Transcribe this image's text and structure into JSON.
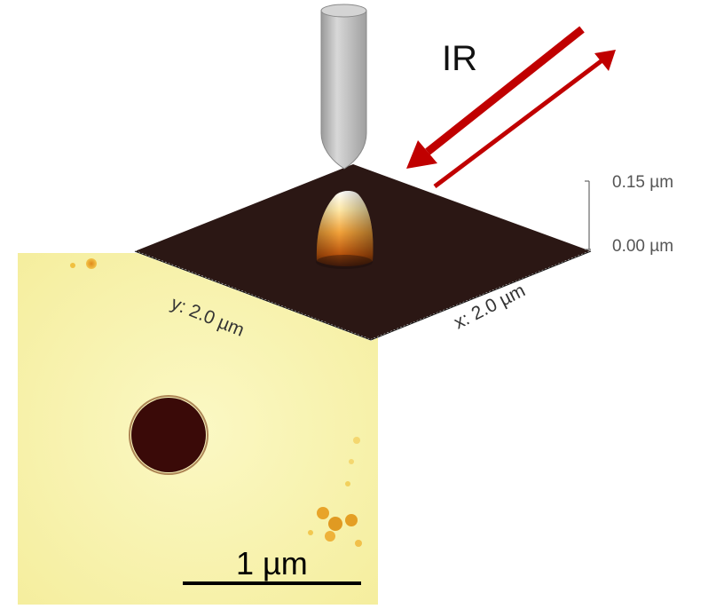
{
  "beam_label": "IR",
  "height_scale": {
    "top": "0.15 µm",
    "bottom": "0.00 µm"
  },
  "axes": {
    "y": "y: 2.0 µm",
    "x": "x: 2.0 µm"
  },
  "scale_bar": {
    "label": "1 µm"
  },
  "colors": {
    "arrow": "#c00000",
    "tip": "#b9b9b9",
    "surface": "#2b1714",
    "map_background": "#f9f5b9",
    "particle": "#3a0a08",
    "peak_top": "#ffffff",
    "peak_base": "#d26a12"
  }
}
